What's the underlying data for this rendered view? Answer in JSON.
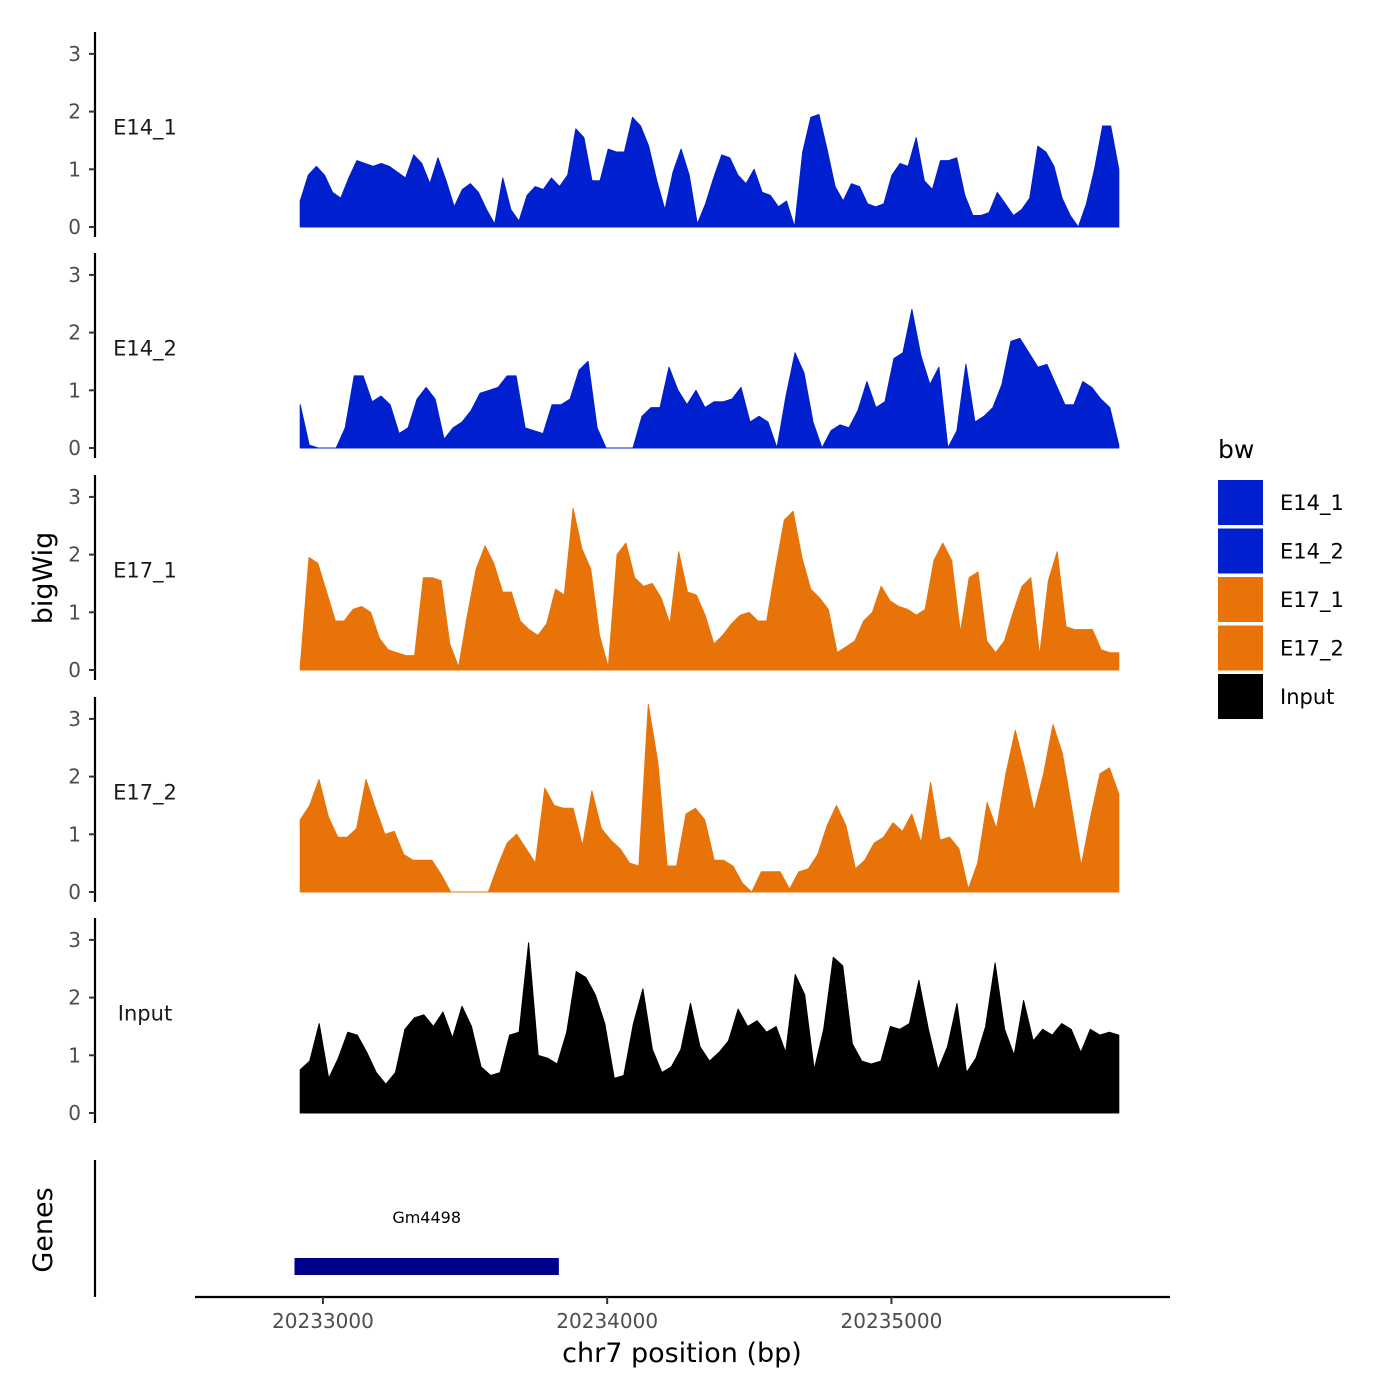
{
  "chart_data": {
    "type": "area",
    "region": "chr7",
    "xlabel": "chr7 position (bp)",
    "ylabel": "bigWig",
    "genes_panel_label": "Genes",
    "x_ticks": [
      20233000,
      20234000,
      20235000
    ],
    "x_tick_labels": [
      "20233000",
      "20234000",
      "20235000"
    ],
    "xlim": [
      20232550,
      20235980
    ],
    "data_x_range": [
      20232920,
      20235800
    ],
    "ylim": [
      0,
      3.35
    ],
    "y_ticks": [
      0,
      1,
      2,
      3
    ],
    "y_tick_labels": [
      "0",
      "1",
      "2",
      "3"
    ],
    "legend": {
      "title": "bw",
      "entries": [
        {
          "label": "E14_1",
          "color": "#0020D0"
        },
        {
          "label": "E14_2",
          "color": "#0020D0"
        },
        {
          "label": "E17_1",
          "color": "#E87409"
        },
        {
          "label": "E17_2",
          "color": "#E87409"
        },
        {
          "label": "Input",
          "color": "#000000"
        }
      ]
    },
    "series": [
      {
        "name": "E14_1",
        "color": "#0020D0",
        "values": [
          0.45,
          0.9,
          1.05,
          0.9,
          0.6,
          0.5,
          0.85,
          1.15,
          1.1,
          1.05,
          1.1,
          1.05,
          0.95,
          0.85,
          1.25,
          1.1,
          0.75,
          1.2,
          0.8,
          0.35,
          0.65,
          0.75,
          0.6,
          0.3,
          0.05,
          0.85,
          0.3,
          0.1,
          0.55,
          0.7,
          0.65,
          0.85,
          0.7,
          0.9,
          1.7,
          1.55,
          0.8,
          0.8,
          1.35,
          1.3,
          1.3,
          1.9,
          1.75,
          1.4,
          0.8,
          0.3,
          0.95,
          1.35,
          0.9,
          0.05,
          0.4,
          0.85,
          1.25,
          1.2,
          0.9,
          0.75,
          1.0,
          0.6,
          0.55,
          0.35,
          0.45,
          0.0,
          1.3,
          1.9,
          1.95,
          1.35,
          0.7,
          0.45,
          0.75,
          0.7,
          0.4,
          0.35,
          0.4,
          0.9,
          1.1,
          1.05,
          1.55,
          0.8,
          0.65,
          1.15,
          1.15,
          1.2,
          0.55,
          0.2,
          0.2,
          0.25,
          0.6,
          0.4,
          0.2,
          0.3,
          0.5,
          1.4,
          1.3,
          1.05,
          0.5,
          0.2,
          0.0,
          0.4,
          1.0,
          1.75,
          1.75,
          1.0
        ]
      },
      {
        "name": "E14_2",
        "color": "#0020D0",
        "values": [
          0.75,
          0.05,
          0.0,
          0.0,
          0.0,
          0.35,
          1.25,
          1.25,
          0.8,
          0.9,
          0.75,
          0.25,
          0.35,
          0.85,
          1.05,
          0.85,
          0.15,
          0.35,
          0.45,
          0.65,
          0.95,
          1.0,
          1.05,
          1.25,
          1.25,
          0.35,
          0.3,
          0.25,
          0.75,
          0.75,
          0.85,
          1.35,
          1.5,
          0.35,
          0.0,
          0.0,
          0.0,
          0.0,
          0.55,
          0.7,
          0.7,
          1.4,
          1.0,
          0.75,
          1.0,
          0.7,
          0.8,
          0.8,
          0.85,
          1.05,
          0.45,
          0.55,
          0.45,
          0.0,
          0.9,
          1.65,
          1.3,
          0.45,
          0.0,
          0.3,
          0.4,
          0.35,
          0.65,
          1.15,
          0.7,
          0.8,
          1.55,
          1.65,
          2.4,
          1.6,
          1.1,
          1.4,
          0.0,
          0.3,
          1.45,
          0.45,
          0.55,
          0.7,
          1.1,
          1.85,
          1.9,
          1.65,
          1.4,
          1.45,
          1.1,
          0.75,
          0.75,
          1.15,
          1.05,
          0.85,
          0.7,
          0.05
        ]
      },
      {
        "name": "E17_1",
        "color": "#E87409",
        "values": [
          0.05,
          1.95,
          1.85,
          1.35,
          0.85,
          0.85,
          1.05,
          1.1,
          1.0,
          0.55,
          0.35,
          0.3,
          0.25,
          0.25,
          1.6,
          1.6,
          1.55,
          0.45,
          0.05,
          0.95,
          1.75,
          2.15,
          1.85,
          1.35,
          1.35,
          0.85,
          0.7,
          0.6,
          0.8,
          1.4,
          1.3,
          2.8,
          2.1,
          1.75,
          0.6,
          0.05,
          2.0,
          2.2,
          1.6,
          1.45,
          1.5,
          1.25,
          0.8,
          2.05,
          1.35,
          1.3,
          0.95,
          0.45,
          0.6,
          0.8,
          0.95,
          1.0,
          0.85,
          0.85,
          1.75,
          2.6,
          2.75,
          1.95,
          1.4,
          1.25,
          1.05,
          0.3,
          0.4,
          0.5,
          0.85,
          1.0,
          1.45,
          1.2,
          1.1,
          1.05,
          0.95,
          1.05,
          1.9,
          2.2,
          1.9,
          0.65,
          1.6,
          1.7,
          0.5,
          0.3,
          0.5,
          1.0,
          1.45,
          1.6,
          0.25,
          1.55,
          2.05,
          0.75,
          0.7,
          0.7,
          0.7,
          0.35,
          0.3,
          0.3
        ]
      },
      {
        "name": "E17_2",
        "color": "#E87409",
        "values": [
          1.25,
          1.5,
          1.95,
          1.3,
          0.95,
          0.95,
          1.1,
          1.95,
          1.45,
          1.0,
          1.05,
          0.65,
          0.55,
          0.55,
          0.55,
          0.3,
          0.0,
          0.0,
          0.0,
          0.0,
          0.0,
          0.45,
          0.85,
          1.0,
          0.75,
          0.5,
          1.8,
          1.5,
          1.45,
          1.45,
          0.8,
          1.75,
          1.1,
          0.9,
          0.75,
          0.5,
          0.45,
          3.25,
          2.25,
          0.45,
          0.45,
          1.35,
          1.45,
          1.25,
          0.55,
          0.55,
          0.45,
          0.15,
          0.0,
          0.35,
          0.35,
          0.35,
          0.05,
          0.35,
          0.4,
          0.65,
          1.15,
          1.5,
          1.15,
          0.4,
          0.55,
          0.85,
          0.95,
          1.2,
          1.05,
          1.35,
          0.85,
          1.9,
          0.9,
          0.95,
          0.75,
          0.05,
          0.5,
          1.55,
          1.1,
          2.05,
          2.8,
          2.15,
          1.4,
          2.05,
          2.9,
          2.4,
          1.45,
          0.45,
          1.3,
          2.05,
          2.15,
          1.7
        ]
      },
      {
        "name": "Input",
        "color": "#000000",
        "values": [
          0.75,
          0.9,
          1.55,
          0.6,
          0.95,
          1.4,
          1.35,
          1.05,
          0.7,
          0.5,
          0.7,
          1.45,
          1.65,
          1.7,
          1.5,
          1.75,
          1.3,
          1.85,
          1.5,
          0.8,
          0.65,
          0.7,
          1.35,
          1.4,
          2.95,
          1.0,
          0.95,
          0.85,
          1.4,
          2.45,
          2.35,
          2.05,
          1.55,
          0.6,
          0.65,
          1.55,
          2.15,
          1.1,
          0.7,
          0.8,
          1.1,
          1.9,
          1.15,
          0.9,
          1.05,
          1.25,
          1.8,
          1.5,
          1.6,
          1.4,
          1.5,
          1.05,
          2.4,
          2.05,
          0.75,
          1.45,
          2.7,
          2.55,
          1.2,
          0.9,
          0.85,
          0.9,
          1.5,
          1.45,
          1.55,
          2.3,
          1.45,
          0.75,
          1.15,
          1.9,
          0.7,
          0.95,
          1.5,
          2.6,
          1.45,
          1.0,
          1.95,
          1.25,
          1.45,
          1.35,
          1.55,
          1.45,
          1.05,
          1.45,
          1.35,
          1.4,
          1.35
        ]
      }
    ],
    "genes": [
      {
        "name": "Gm4498",
        "start": 20232900,
        "end": 20233830,
        "color": "#00008B"
      }
    ]
  }
}
